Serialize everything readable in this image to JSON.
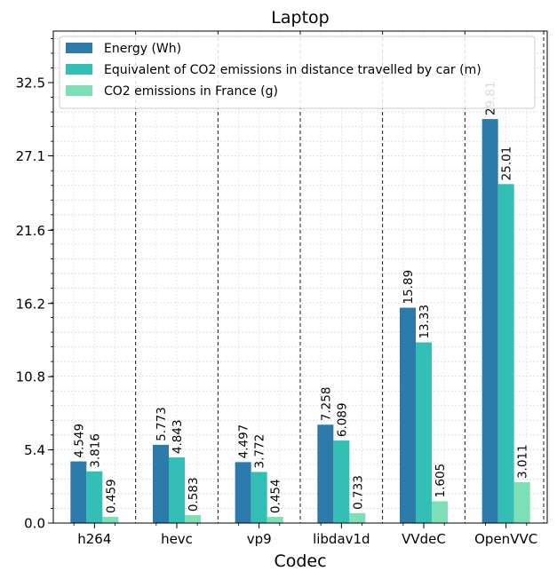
{
  "chart_data": {
    "type": "bar",
    "title": "Laptop",
    "xlabel": "Codec",
    "ylabel": "",
    "categories": [
      "h264",
      "hevc",
      "vp9",
      "libdav1d",
      "VVdeC",
      "OpenVVC"
    ],
    "series": [
      {
        "name": "Energy (Wh)",
        "color": "#2c7bab",
        "values": [
          4.549,
          5.773,
          4.497,
          7.258,
          15.89,
          29.81
        ],
        "labels": [
          "4.549",
          "5.773",
          "4.497",
          "7.258",
          "15.89",
          "29.81"
        ]
      },
      {
        "name": "Equivalent of CO2 emissions in distance travelled by car (m)",
        "color": "#33bfb5",
        "values": [
          3.816,
          4.843,
          3.772,
          6.089,
          13.33,
          25.01
        ],
        "labels": [
          "3.816",
          "4.843",
          "3.772",
          "6.089",
          "13.33",
          "25.01"
        ]
      },
      {
        "name": "CO2 emissions in France (g)",
        "color": "#7ddfb6",
        "values": [
          0.459,
          0.583,
          0.454,
          0.733,
          1.605,
          3.011
        ],
        "labels": [
          "0.459",
          "0.583",
          "0.454",
          "0.733",
          "1.605",
          "3.011"
        ]
      }
    ],
    "yticks": [
      0.0,
      5.4,
      10.8,
      16.2,
      21.6,
      27.1,
      32.5
    ],
    "ytick_labels": [
      "0.0",
      "5.4",
      "10.8",
      "16.2",
      "21.6",
      "27.1",
      "32.5"
    ],
    "ylim": [
      0,
      36.3
    ],
    "grid": true,
    "legend_position": "top-left"
  }
}
